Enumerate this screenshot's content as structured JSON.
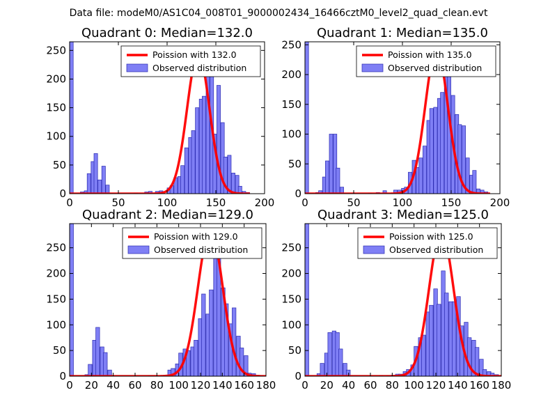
{
  "suptitle": "Data file: modeM0/AS1C04_008T01_9000002434_16466cztM0_level2_quad_clean.evt",
  "colors": {
    "bar_fill": "#7f7ff5",
    "bar_edge": "#2a2ab0",
    "poisson_line": "#ff0000",
    "axes": "#000000",
    "legend_edge": "#000000"
  },
  "chart_data": [
    {
      "type": "bar",
      "title": "Quadrant 0: Median=132.0",
      "xlim": [
        0,
        200
      ],
      "ylim": [
        0,
        265
      ],
      "xticks": [
        0,
        50,
        100,
        150,
        200
      ],
      "yticks": [
        0,
        50,
        100,
        150,
        200,
        250
      ],
      "bin_width": 3.7,
      "bins": [
        [
          0,
          265
        ],
        [
          11,
          3
        ],
        [
          15,
          5
        ],
        [
          18,
          35
        ],
        [
          22,
          56
        ],
        [
          25,
          70
        ],
        [
          29,
          24
        ],
        [
          33,
          48
        ],
        [
          37,
          15
        ],
        [
          66,
          1
        ],
        [
          77,
          3
        ],
        [
          81,
          4
        ],
        [
          88,
          4
        ],
        [
          92,
          5
        ],
        [
          100,
          10
        ],
        [
          103,
          14
        ],
        [
          107,
          28
        ],
        [
          111,
          30
        ],
        [
          114,
          49
        ],
        [
          118,
          80
        ],
        [
          122,
          98
        ],
        [
          125,
          110
        ],
        [
          129,
          150
        ],
        [
          133,
          165
        ],
        [
          136,
          170
        ],
        [
          140,
          247
        ],
        [
          144,
          213
        ],
        [
          147,
          104
        ],
        [
          151,
          189
        ],
        [
          155,
          124
        ],
        [
          158,
          64
        ],
        [
          162,
          67
        ],
        [
          166,
          36
        ],
        [
          170,
          32
        ],
        [
          173,
          13
        ],
        [
          177,
          4
        ],
        [
          181,
          2
        ]
      ],
      "poisson": {
        "mean": 132.0,
        "peak": 245,
        "sigma": 11.5,
        "x_range": [
          0,
          185
        ]
      },
      "legend": {
        "line_label": "Poission with 132.0",
        "bar_label": "Observed distribution",
        "position": "top-right"
      }
    },
    {
      "type": "bar",
      "title": "Quadrant 1: Median=135.0",
      "xlim": [
        0,
        200
      ],
      "ylim": [
        0,
        255
      ],
      "xticks": [
        0,
        50,
        100,
        150,
        200
      ],
      "yticks": [
        0,
        50,
        100,
        150,
        200,
        250
      ],
      "bin_width": 3.7,
      "bins": [
        [
          0,
          255
        ],
        [
          11,
          2
        ],
        [
          14,
          5
        ],
        [
          18,
          28
        ],
        [
          21,
          55
        ],
        [
          25,
          100
        ],
        [
          29,
          100
        ],
        [
          32,
          43
        ],
        [
          36,
          11
        ],
        [
          65,
          1
        ],
        [
          73,
          2
        ],
        [
          80,
          5
        ],
        [
          91,
          6
        ],
        [
          95,
          6
        ],
        [
          99,
          9
        ],
        [
          102,
          11
        ],
        [
          106,
          36
        ],
        [
          110,
          56
        ],
        [
          114,
          44
        ],
        [
          117,
          60
        ],
        [
          121,
          80
        ],
        [
          125,
          123
        ],
        [
          128,
          143
        ],
        [
          132,
          145
        ],
        [
          136,
          160
        ],
        [
          139,
          170
        ],
        [
          143,
          210
        ],
        [
          146,
          215
        ],
        [
          150,
          165
        ],
        [
          154,
          133
        ],
        [
          157,
          116
        ],
        [
          161,
          114
        ],
        [
          165,
          60
        ],
        [
          169,
          31
        ],
        [
          172,
          39
        ],
        [
          176,
          8
        ],
        [
          180,
          6
        ],
        [
          184,
          3
        ]
      ],
      "poisson": {
        "mean": 135.0,
        "peak": 243,
        "sigma": 11.6,
        "x_range": [
          0,
          190
        ]
      },
      "legend": {
        "line_label": "Poission with 135.0",
        "bar_label": "Observed distribution",
        "position": "top-right"
      }
    },
    {
      "type": "bar",
      "title": "Quadrant 2: Median=129.0",
      "xlim": [
        0,
        180
      ],
      "ylim": [
        0,
        297
      ],
      "xticks": [
        0,
        20,
        40,
        60,
        80,
        100,
        120,
        140,
        160,
        180
      ],
      "yticks": [
        0,
        50,
        100,
        150,
        200,
        250
      ],
      "bin_width": 3.5,
      "bins": [
        [
          0,
          297
        ],
        [
          14,
          3
        ],
        [
          17,
          23
        ],
        [
          21,
          70
        ],
        [
          24,
          95
        ],
        [
          28,
          57
        ],
        [
          31,
          46
        ],
        [
          35,
          12
        ],
        [
          72,
          1
        ],
        [
          75,
          1
        ],
        [
          86,
          2
        ],
        [
          90,
          12
        ],
        [
          93,
          15
        ],
        [
          97,
          24
        ],
        [
          100,
          45
        ],
        [
          104,
          53
        ],
        [
          107,
          50
        ],
        [
          111,
          57
        ],
        [
          114,
          70
        ],
        [
          118,
          112
        ],
        [
          121,
          160
        ],
        [
          125,
          121
        ],
        [
          128,
          168
        ],
        [
          132,
          277
        ],
        [
          135,
          247
        ],
        [
          139,
          172
        ],
        [
          142,
          141
        ],
        [
          146,
          102
        ],
        [
          149,
          133
        ],
        [
          153,
          78
        ],
        [
          156,
          55
        ],
        [
          160,
          40
        ],
        [
          163,
          6
        ],
        [
          167,
          5
        ],
        [
          170,
          2
        ],
        [
          174,
          1
        ]
      ],
      "poisson": {
        "mean": 129.0,
        "peak": 285,
        "sigma": 11.4,
        "x_range": [
          0,
          180
        ]
      },
      "legend": {
        "line_label": "Poission with 129.0",
        "bar_label": "Observed distribution",
        "position": "top-right"
      }
    },
    {
      "type": "bar",
      "title": "Quadrant 3: Median=125.0",
      "xlim": [
        0,
        180
      ],
      "ylim": [
        0,
        297
      ],
      "xticks": [
        0,
        20,
        40,
        60,
        80,
        100,
        120,
        140,
        160,
        180
      ],
      "yticks": [
        0,
        50,
        100,
        150,
        200,
        250
      ],
      "bin_width": 3.5,
      "bins": [
        [
          0,
          297
        ],
        [
          11,
          5
        ],
        [
          14,
          25
        ],
        [
          18,
          45
        ],
        [
          21,
          85
        ],
        [
          25,
          88
        ],
        [
          28,
          85
        ],
        [
          31,
          53
        ],
        [
          35,
          25
        ],
        [
          38,
          12
        ],
        [
          68,
          1
        ],
        [
          75,
          1
        ],
        [
          79,
          2
        ],
        [
          83,
          4
        ],
        [
          86,
          4
        ],
        [
          90,
          9
        ],
        [
          93,
          13
        ],
        [
          97,
          22
        ],
        [
          100,
          58
        ],
        [
          104,
          75
        ],
        [
          107,
          80
        ],
        [
          111,
          125
        ],
        [
          114,
          138
        ],
        [
          118,
          170
        ],
        [
          121,
          140
        ],
        [
          125,
          205
        ],
        [
          128,
          162
        ],
        [
          132,
          145
        ],
        [
          135,
          145
        ],
        [
          139,
          155
        ],
        [
          142,
          98
        ],
        [
          146,
          105
        ],
        [
          149,
          75
        ],
        [
          153,
          70
        ],
        [
          156,
          56
        ],
        [
          160,
          33
        ],
        [
          163,
          13
        ],
        [
          167,
          9
        ],
        [
          170,
          6
        ],
        [
          174,
          3
        ]
      ],
      "poisson": {
        "mean": 125.0,
        "peak": 282,
        "sigma": 11.2,
        "x_range": [
          0,
          180
        ]
      },
      "legend": {
        "line_label": "Poission with 125.0",
        "bar_label": "Observed distribution",
        "position": "top-right"
      }
    }
  ]
}
